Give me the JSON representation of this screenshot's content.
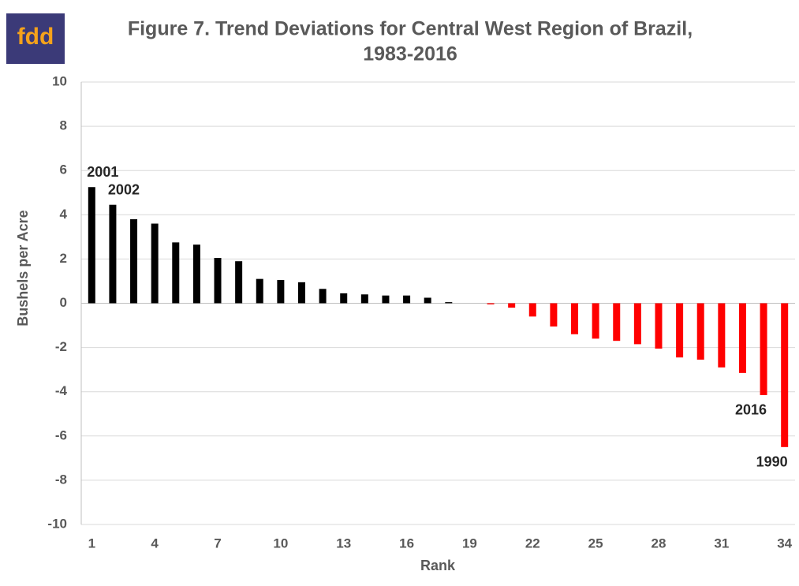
{
  "logo": "fdd",
  "chart_data": {
    "type": "bar",
    "title": [
      "Figure 7. Trend Deviations for Central West Region of Brazil,",
      "1983-2016"
    ],
    "x_label": "Rank",
    "y_label": "Bushels per Acre",
    "categories": [
      1,
      null,
      null,
      4,
      null,
      null,
      7,
      null,
      null,
      10,
      null,
      null,
      13,
      null,
      null,
      16,
      null,
      null,
      19,
      null,
      null,
      22,
      null,
      null,
      25,
      null,
      null,
      28,
      null,
      null,
      31,
      null,
      null,
      34
    ],
    "values": [
      5.25,
      4.45,
      3.8,
      3.6,
      2.75,
      2.65,
      2.05,
      1.9,
      1.1,
      1.05,
      0.95,
      0.65,
      0.45,
      0.4,
      0.35,
      0.35,
      0.25,
      0.05,
      0,
      -0.05,
      -0.2,
      -0.6,
      -1.05,
      -1.4,
      -1.6,
      -1.7,
      -1.85,
      -2.05,
      -2.45,
      -2.55,
      -2.9,
      -3.15,
      -4.15,
      -6.5
    ],
    "color": "#000000",
    "negative_color": "#ff0000",
    "ylim": [
      -10,
      10
    ],
    "yticks": [
      -10,
      -8,
      -6,
      -4,
      -2,
      0,
      2,
      4,
      6,
      8,
      10
    ],
    "grid": true,
    "annotations": [
      {
        "text": "2001",
        "x": 1
      },
      {
        "text": "2002",
        "x": 2
      },
      {
        "text": "2016",
        "x": 33
      },
      {
        "text": "1990",
        "x": 34
      }
    ]
  }
}
